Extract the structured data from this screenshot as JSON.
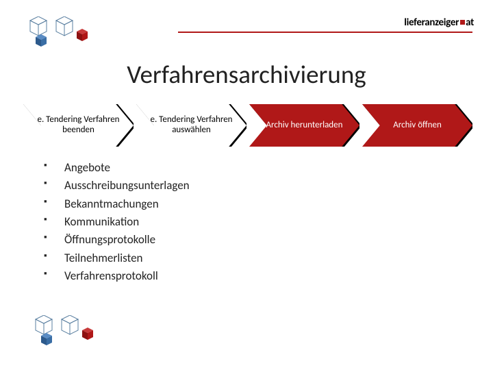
{
  "brand": {
    "t1": "lieferanzeiger",
    "t2": "at",
    "color_text": "#3a3a3a",
    "color_dot": "#b01818"
  },
  "hr_color": "#b01818",
  "title": "Verfahrensarchivierung",
  "title_fontsize": 37,
  "title_color": "#222222",
  "steps": {
    "arrow_notch": 16,
    "height": 62,
    "items": [
      {
        "label": "e. Tendering Verfahren beenden",
        "fill": "#ffffff",
        "text": "#000000",
        "red": false
      },
      {
        "label": "e. Tendering Verfahren auswählen",
        "fill": "#ffffff",
        "text": "#000000",
        "red": false
      },
      {
        "label": "Archiv herunterladen",
        "fill": "#b01818",
        "text": "#ffffff",
        "red": true
      },
      {
        "label": "Archiv öffnen",
        "fill": "#b01818",
        "text": "#ffffff",
        "red": true
      }
    ],
    "shadow_color": "#000000"
  },
  "bullets": [
    "Angebote",
    "Ausschreibungsunterlagen",
    "Bekanntmachungen",
    "Kommunikation",
    "Öffnungsprotokolle",
    "Teilnehmerlisten",
    "Verfahrensprotokoll"
  ],
  "bullet_fontsize": 17,
  "bullet_color": "#222222",
  "cubes": {
    "wire_color": "#5a7fa0",
    "red": "#b01818",
    "blue": "#3a6ea5"
  }
}
